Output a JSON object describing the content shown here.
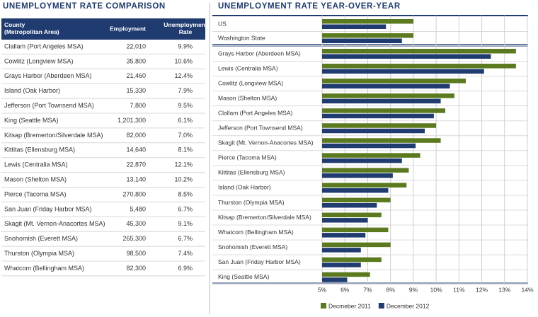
{
  "table": {
    "title": "UNEMPLOYMENT RATE COMPARISON",
    "header": [
      "County\n(Metropolitan Area)",
      "Employment",
      "Unemployment\nRate"
    ],
    "rows": [
      [
        "Clallam (Port Angeles MSA)",
        "22,010",
        "9.9%"
      ],
      [
        "Cowlitz (Longview MSA)",
        "35,800",
        "10.6%"
      ],
      [
        "Grays Harbor (Aberdeen MSA)",
        "21,460",
        "12.4%"
      ],
      [
        "Island (Oak Harbor)",
        "15,330",
        "7.9%"
      ],
      [
        "Jefferson (Port Townsend MSA)",
        "7,800",
        "9.5%"
      ],
      [
        "King (Seattle MSA)",
        "1,201,300",
        "6.1%"
      ],
      [
        "Kitsap (Bremerton/Silverdale MSA)",
        "82,000",
        "7.0%"
      ],
      [
        "Kittitas (Ellensburg MSA)",
        "14,640",
        "8.1%"
      ],
      [
        "Lewis (Centralia MSA)",
        "22,870",
        "12.1%"
      ],
      [
        "Mason (Shelton MSA)",
        "13,140",
        "10.2%"
      ],
      [
        "Pierce (Tacoma MSA)",
        "270,800",
        "8.5%"
      ],
      [
        "San Juan (Friday Harbor MSA)",
        "5,480",
        "6.7%"
      ],
      [
        "Skagit (Mt. Vernon-Anacortes MSA)",
        "45,300",
        "9.1%"
      ],
      [
        "Snohomish (Everett MSA)",
        "265,300",
        "6.7%"
      ],
      [
        "Thurston (Olympia MSA)",
        "98,500",
        "7.4%"
      ],
      [
        "Whatcom (Bellingham MSA)",
        "82,300",
        "6.9%"
      ]
    ]
  },
  "chart_data": {
    "type": "bar",
    "orientation": "horizontal",
    "title": "UNEMPLOYMENT RATE YEAR-OVER-YEAR",
    "categories": [
      "US",
      "Washington State",
      "Grays Harbor (Aberdeen MSA)",
      "Lewis (Centralia MSA)",
      "Cowlitz (Longview MSA)",
      "Mason (Shelton MSA)",
      "Clallam (Port Angeles MSA)",
      "Jefferson (Port Townsend MSA)",
      "Skagit (Mt. Vernon-Anacortes MSA)",
      "Pierce (Tacoma MSA)",
      "Kittitas (Ellensburg MSA)",
      "Island (Oak Harbor)",
      "Thurston (Olympia MSA)",
      "Kitsap (Bremerton/Silverdale MSA)",
      "Whatcom (Bellingham MSA)",
      "Snohomish (Everett MSA)",
      "San Juan (Friday Harbor MSA)",
      "King (Seattle MSA)"
    ],
    "series": [
      {
        "name": "Decmeber 2011",
        "color": "#5b7a1f",
        "values": [
          9.0,
          9.0,
          13.5,
          13.5,
          11.3,
          10.8,
          10.4,
          10.0,
          10.2,
          9.3,
          8.8,
          8.7,
          8.0,
          7.6,
          7.9,
          8.0,
          7.6,
          7.1
        ]
      },
      {
        "name": "December 2012",
        "color": "#1f3b70",
        "values": [
          7.8,
          8.5,
          12.4,
          12.1,
          10.6,
          10.2,
          9.9,
          9.5,
          9.1,
          8.5,
          8.1,
          7.9,
          7.4,
          7.0,
          6.9,
          6.7,
          6.7,
          6.1
        ]
      }
    ],
    "xlim": [
      5,
      14
    ],
    "xticks": [
      {
        "value": 5,
        "label": "5%"
      },
      {
        "value": 6,
        "label": "6%"
      },
      {
        "value": 7,
        "label": "7%"
      },
      {
        "value": 8,
        "label": "8%"
      },
      {
        "value": 9,
        "label": "9%"
      },
      {
        "value": 10,
        "label": "10%"
      },
      {
        "value": 11,
        "label": "11%"
      },
      {
        "value": 12,
        "label": "12%"
      },
      {
        "value": 13,
        "label": "13%"
      },
      {
        "value": 14,
        "label": "14%"
      }
    ],
    "grid": true,
    "legend": "bottom"
  }
}
